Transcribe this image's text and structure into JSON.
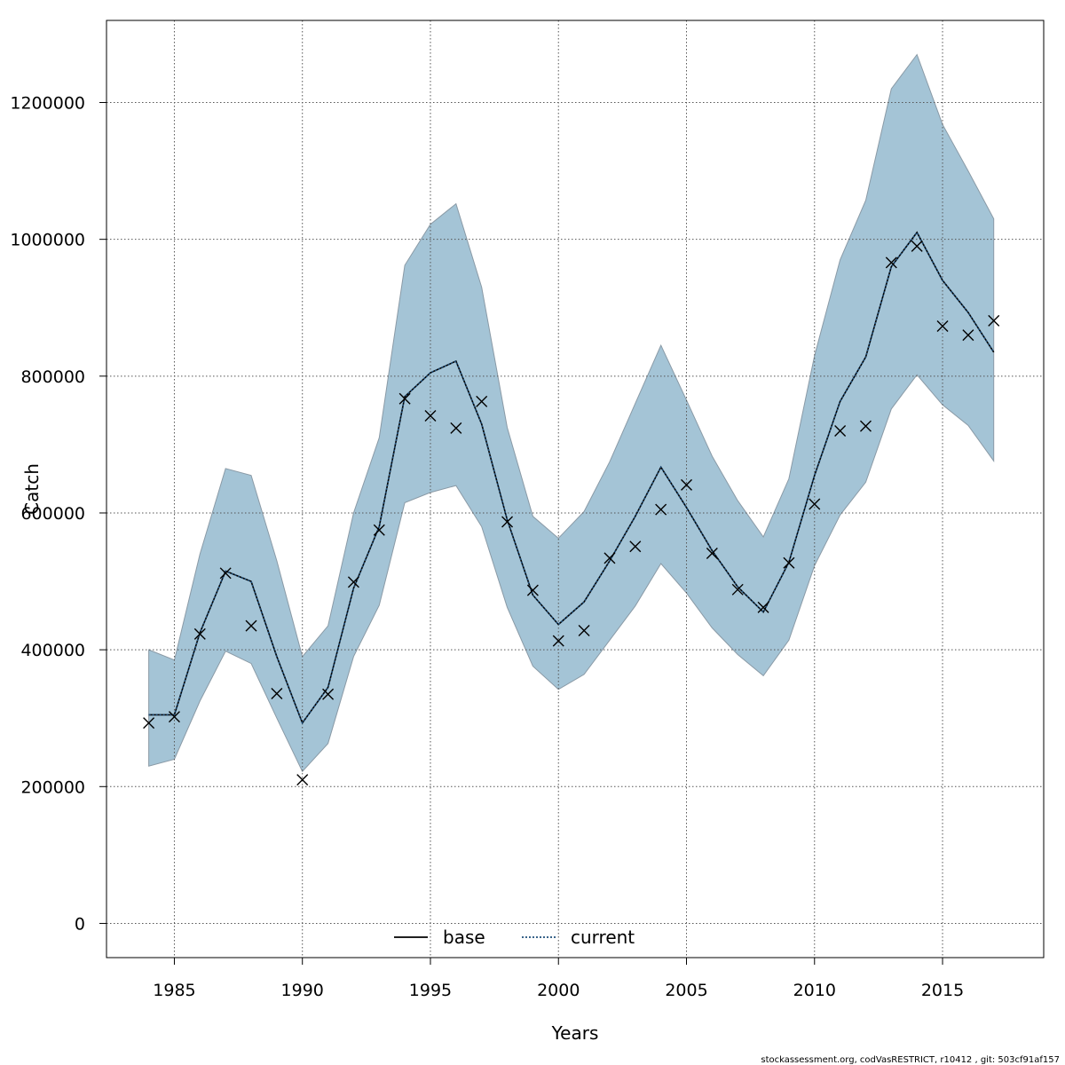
{
  "chart_data": {
    "type": "line",
    "xlabel": "Years",
    "ylabel": "Catch",
    "xlim": [
      1982.35,
      2018.95
    ],
    "ylim": [
      -50000,
      1320000
    ],
    "x_ticks": [
      1985,
      1990,
      1995,
      2000,
      2005,
      2010,
      2015
    ],
    "x_tick_labels": [
      "1985",
      "1990",
      "1995",
      "2000",
      "2005",
      "2010",
      "2015"
    ],
    "y_ticks": [
      0,
      200000,
      400000,
      600000,
      800000,
      1000000,
      1200000
    ],
    "y_tick_labels": [
      "0",
      "200000",
      "400000",
      "600000",
      "800000",
      "1000000",
      "1200000"
    ],
    "grid": true,
    "legend_position": "bottom-center",
    "x": [
      1984,
      1985,
      1986,
      1987,
      1988,
      1989,
      1990,
      1991,
      1992,
      1993,
      1994,
      1995,
      1996,
      1997,
      1998,
      1999,
      2000,
      2001,
      2002,
      2003,
      2004,
      2005,
      2006,
      2007,
      2008,
      2009,
      2010,
      2011,
      2012,
      2013,
      2014,
      2015,
      2016,
      2017
    ],
    "series": [
      {
        "name": "base",
        "style": "solid",
        "color": "#000000",
        "values": [
          305000,
          305000,
          425000,
          515000,
          500000,
          390000,
          293000,
          345000,
          490000,
          580000,
          770000,
          805000,
          822000,
          730000,
          590000,
          480000,
          437000,
          470000,
          530000,
          595000,
          667000,
          608000,
          545000,
          492000,
          455000,
          528000,
          655000,
          763000,
          828000,
          960000,
          1010000,
          940000,
          893000,
          835000
        ]
      },
      {
        "name": "current",
        "style": "dotted",
        "color": "#1f4e79",
        "values": [
          305000,
          305000,
          425000,
          515000,
          500000,
          390000,
          293000,
          345000,
          490000,
          580000,
          770000,
          805000,
          822000,
          730000,
          590000,
          480000,
          437000,
          470000,
          530000,
          595000,
          667000,
          608000,
          545000,
          492000,
          455000,
          528000,
          655000,
          763000,
          828000,
          960000,
          1010000,
          940000,
          893000,
          835000
        ]
      }
    ],
    "band": {
      "color": "#a4c4d6",
      "lower": [
        230000,
        240000,
        325000,
        398000,
        380000,
        300000,
        222000,
        263000,
        390000,
        465000,
        615000,
        630000,
        640000,
        580000,
        462000,
        376000,
        342000,
        364000,
        414000,
        464000,
        526000,
        483000,
        432000,
        393000,
        362000,
        414000,
        523000,
        597000,
        645000,
        752000,
        802000,
        758000,
        728000,
        676000
      ],
      "upper": [
        400000,
        385000,
        540000,
        665000,
        655000,
        530000,
        390000,
        435000,
        600000,
        710000,
        962000,
        1022000,
        1052000,
        930000,
        725000,
        595000,
        563000,
        602000,
        675000,
        760000,
        845000,
        765000,
        683000,
        618000,
        565000,
        650000,
        830000,
        970000,
        1057000,
        1220000,
        1270000,
        1168000,
        1100000,
        1030000
      ]
    },
    "observed": {
      "marker": "x",
      "values": [
        293000,
        302000,
        423000,
        512000,
        435000,
        336000,
        210000,
        335000,
        499000,
        575000,
        767000,
        742000,
        724000,
        763000,
        587000,
        487000,
        413000,
        428000,
        534000,
        551000,
        605000,
        641000,
        541000,
        488000,
        462000,
        527000,
        613000,
        720000,
        727000,
        966000,
        990000,
        873000,
        860000,
        881000
      ]
    }
  },
  "footer_text": "stockassessment.org, codVasRESTRICT, r10412 , git: 503cf91af157"
}
